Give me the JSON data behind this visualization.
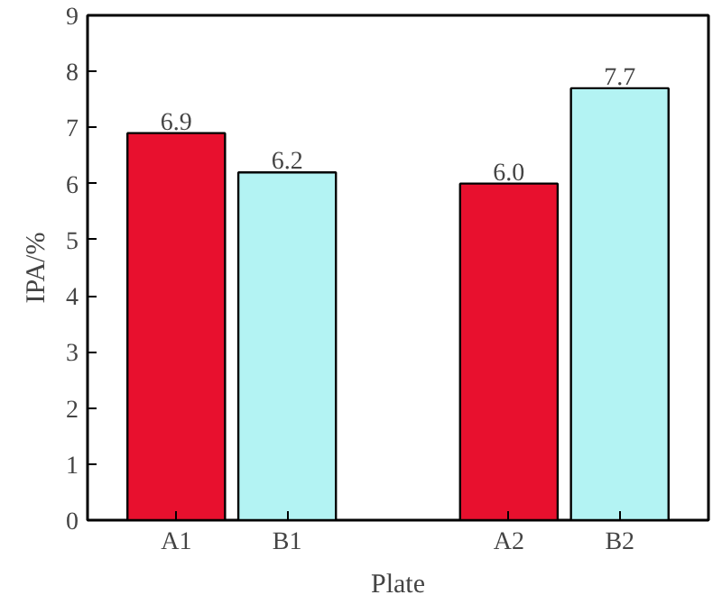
{
  "chart_data": {
    "type": "bar",
    "xlabel": "Plate",
    "ylabel": "IPA/%",
    "categories": [
      "A1",
      "B1",
      null,
      "A2",
      "B2"
    ],
    "values": [
      6.9,
      6.2,
      null,
      6.0,
      7.7
    ],
    "value_labels": [
      "6.9",
      "6.2",
      null,
      "6.0",
      "7.7"
    ],
    "colors": [
      "#e8102e",
      "#b3f3f3",
      null,
      "#e8102e",
      "#b3f3f3"
    ],
    "ylim": [
      0,
      9
    ],
    "yticks": [
      0,
      1,
      2,
      3,
      4,
      5,
      6,
      7,
      8,
      9
    ],
    "grid": false
  }
}
